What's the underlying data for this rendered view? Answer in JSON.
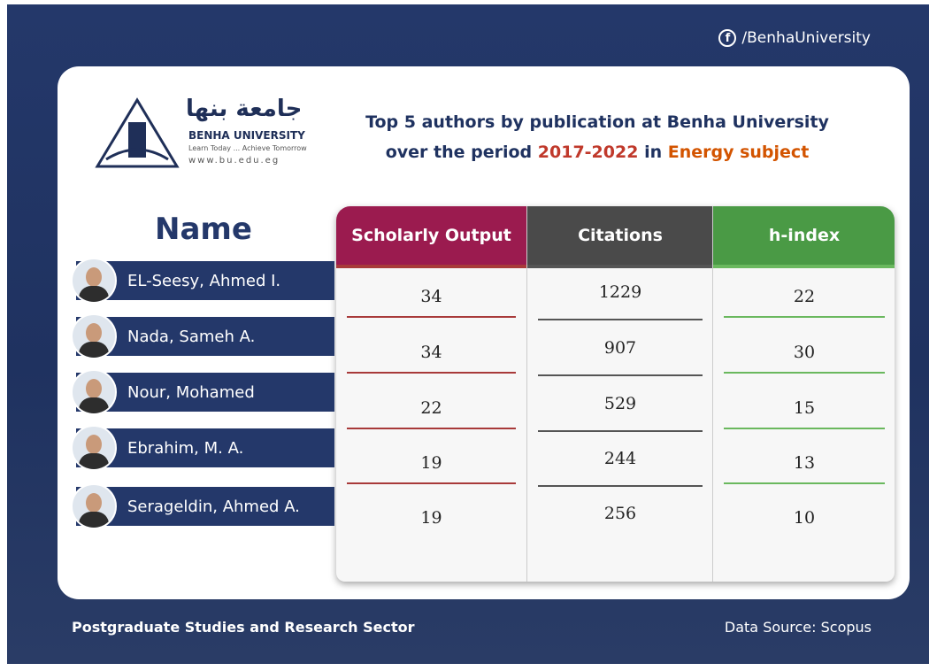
{
  "header": {
    "social": "/BenhaUniversity",
    "logo": {
      "arabic": "جامعة بنها",
      "name": "BENHA UNIVERSITY",
      "tagline": "Learn Today ... Achieve Tomorrow",
      "url": "www.bu.edu.eg"
    },
    "title_line1": "Top 5 authors by publication at Benha University",
    "title_line2": [
      "over the period",
      "2017-2022",
      "in",
      "Energy subject"
    ]
  },
  "table": {
    "columns": [
      "Name",
      "Scholarly Output",
      "Citations",
      "h-index"
    ],
    "rows": [
      [
        "EL-Seesy, Ahmed I.",
        34,
        1229,
        22
      ],
      [
        "Nada, Sameh A.",
        34,
        907,
        30
      ],
      [
        "Nour, Mohamed",
        22,
        529,
        15
      ],
      [
        "Ebrahim, M. A.",
        19,
        244,
        13
      ],
      [
        "Serageldin, Ahmed A.",
        19,
        256,
        10
      ]
    ]
  },
  "footer": {
    "left": "Postgraduate Studies and Research Sector",
    "right": "Data Source: Scopus"
  }
}
